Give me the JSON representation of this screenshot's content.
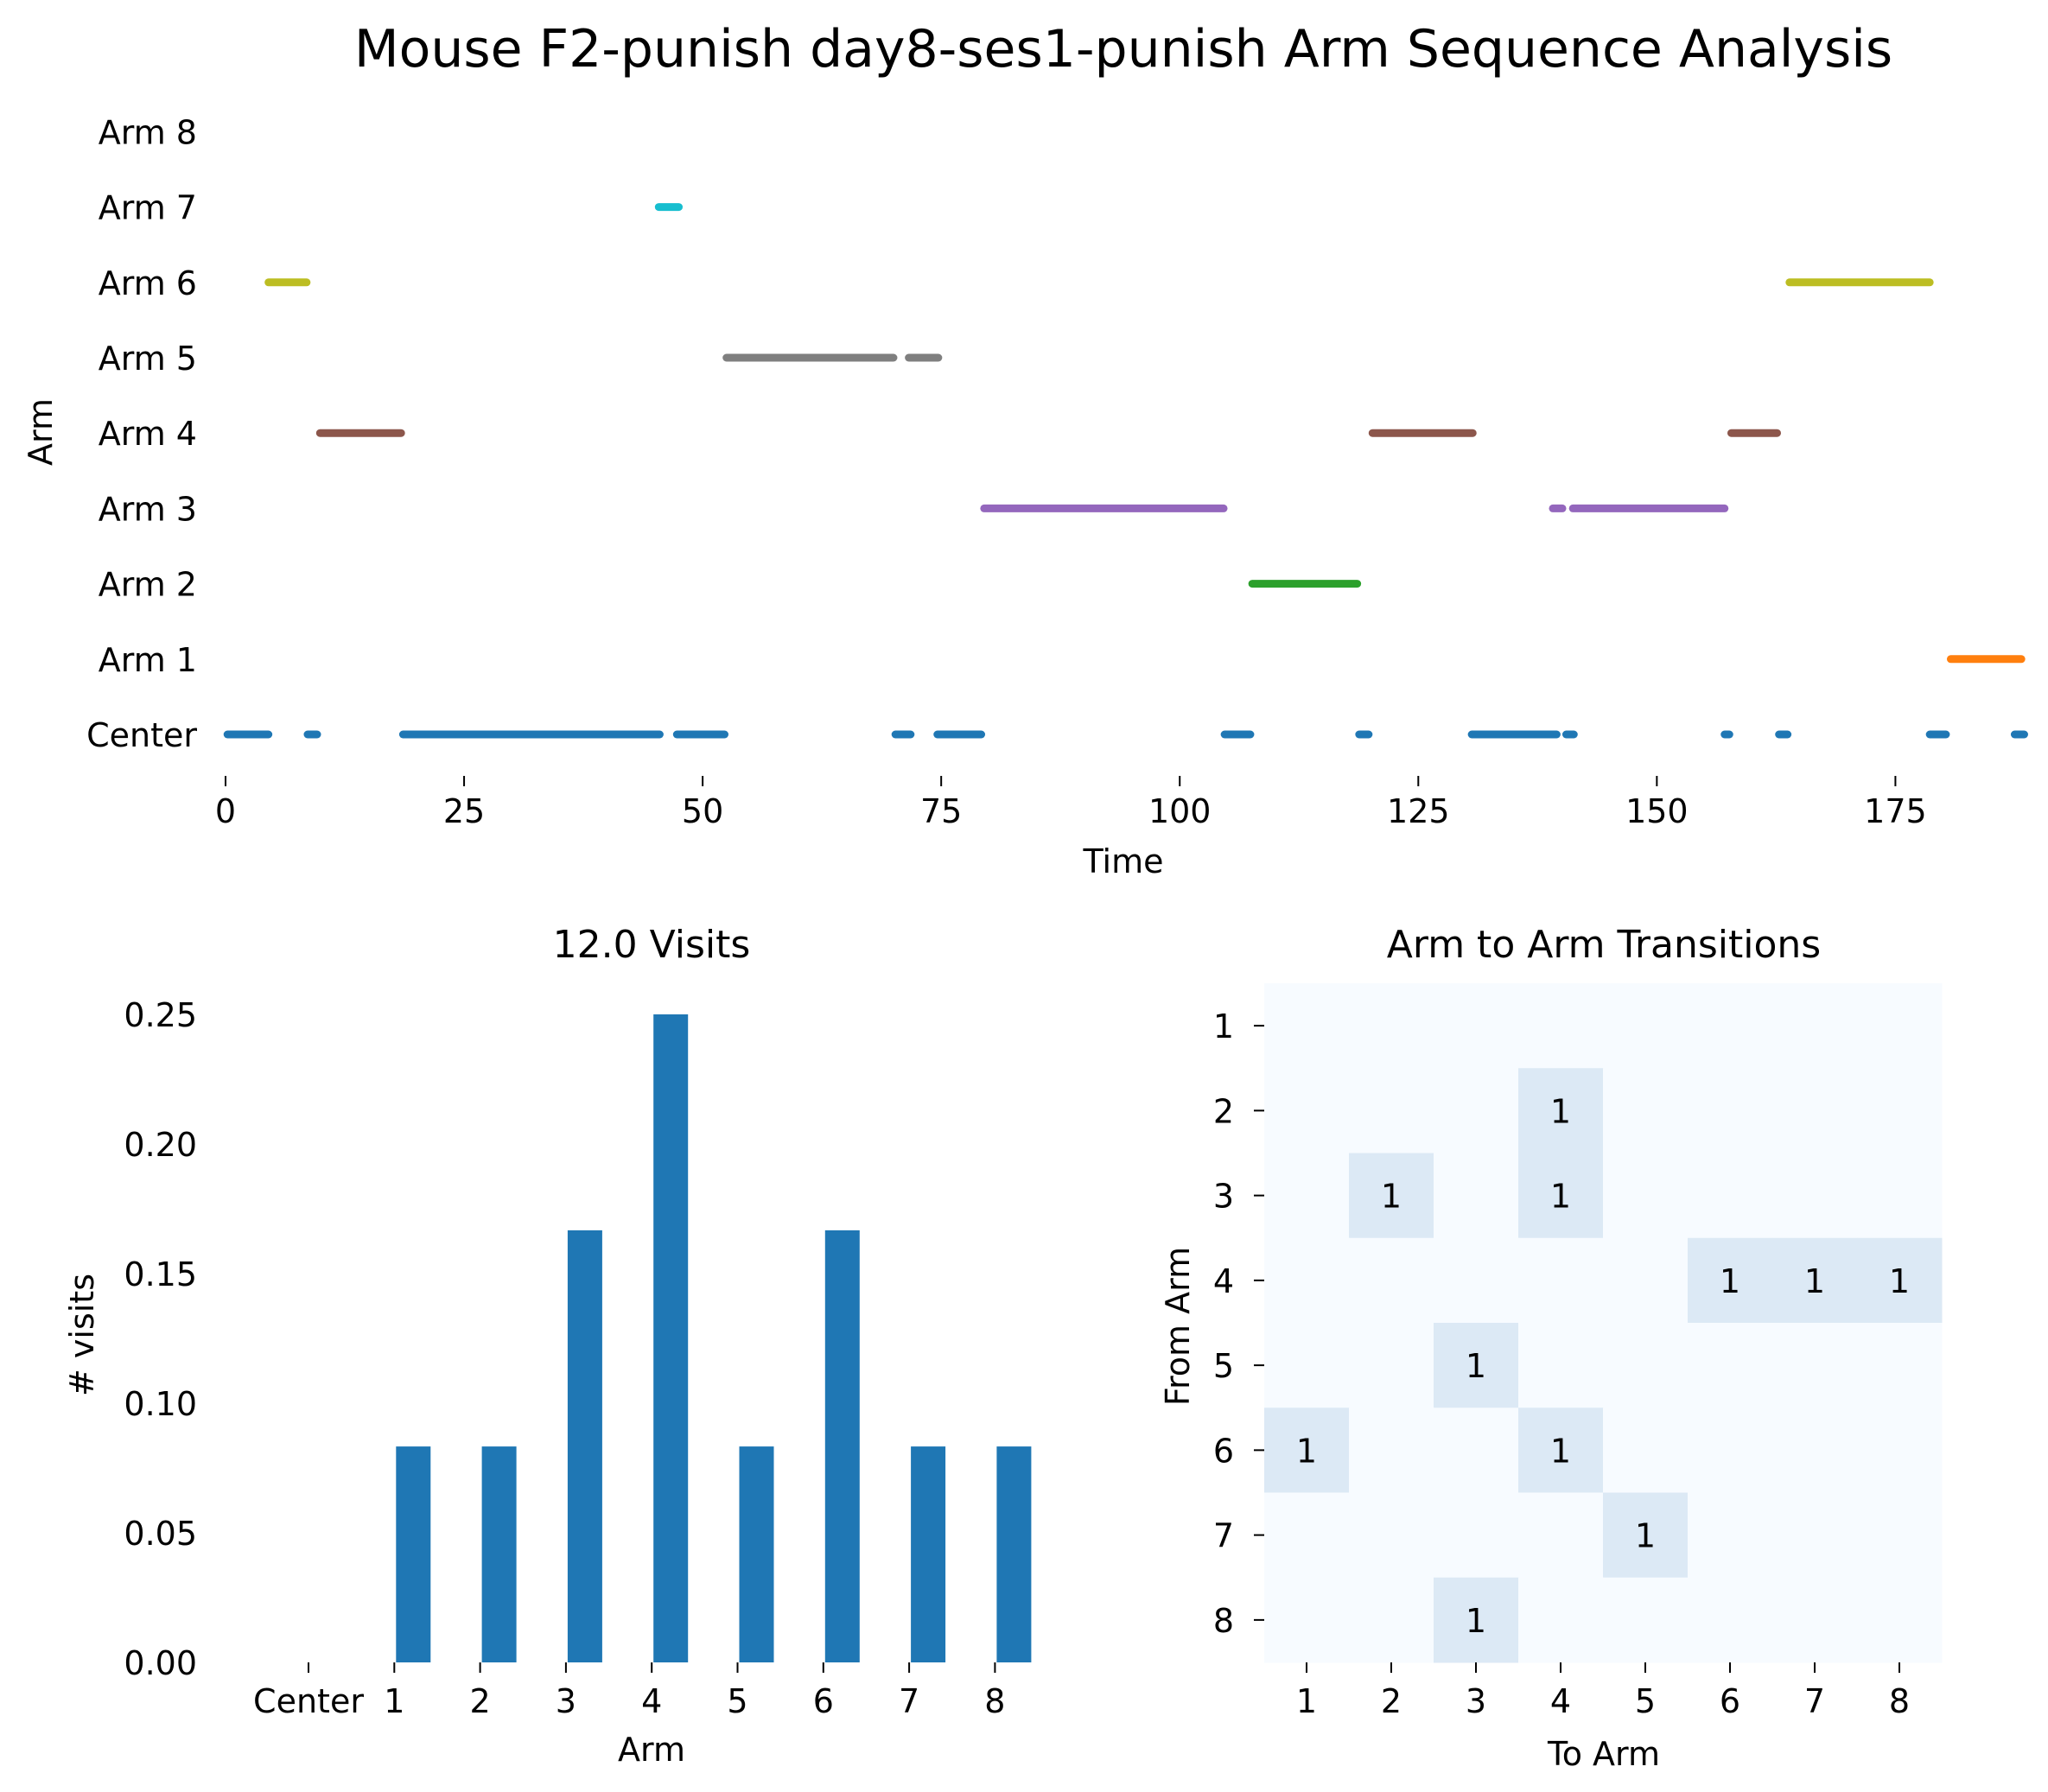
{
  "figure": {
    "title": "Mouse F2-punish day8-ses1-punish Arm Sequence Analysis"
  },
  "chart_data": [
    {
      "type": "line",
      "name": "arm-sequence",
      "title": "",
      "xlabel": "Time",
      "ylabel": "Arm",
      "x_ticks": [
        0,
        25,
        50,
        75,
        100,
        125,
        150,
        175
      ],
      "xlim": [
        0,
        189
      ],
      "y_categories": [
        "Center",
        "Arm 1",
        "Arm 2",
        "Arm 3",
        "Arm 4",
        "Arm 5",
        "Arm 6",
        "Arm 7",
        "Arm 8"
      ],
      "grid": false,
      "segments": [
        {
          "arm": "Center",
          "color": "#1f77b4",
          "x": [
            0.2,
            4.5
          ]
        },
        {
          "arm": "Center",
          "color": "#1f77b4",
          "x": [
            8.6,
            9.6
          ]
        },
        {
          "arm": "Center",
          "color": "#1f77b4",
          "x": [
            18.6,
            45.5
          ]
        },
        {
          "arm": "Center",
          "color": "#1f77b4",
          "x": [
            47.3,
            52.3
          ]
        },
        {
          "arm": "Center",
          "color": "#1f77b4",
          "x": [
            70.2,
            71.8
          ]
        },
        {
          "arm": "Center",
          "color": "#1f77b4",
          "x": [
            74.6,
            79.2
          ]
        },
        {
          "arm": "Center",
          "color": "#1f77b4",
          "x": [
            104.7,
            107.4
          ]
        },
        {
          "arm": "Center",
          "color": "#1f77b4",
          "x": [
            118.8,
            119.8
          ]
        },
        {
          "arm": "Center",
          "color": "#1f77b4",
          "x": [
            130.6,
            139.5
          ]
        },
        {
          "arm": "Center",
          "color": "#1f77b4",
          "x": [
            140.5,
            141.3
          ]
        },
        {
          "arm": "Center",
          "color": "#1f77b4",
          "x": [
            157.1,
            157.6
          ]
        },
        {
          "arm": "Center",
          "color": "#1f77b4",
          "x": [
            162.8,
            163.7
          ]
        },
        {
          "arm": "Center",
          "color": "#1f77b4",
          "x": [
            178.6,
            180.3
          ]
        },
        {
          "arm": "Center",
          "color": "#1f77b4",
          "x": [
            187.5,
            188.5
          ]
        },
        {
          "arm": "Arm 1",
          "color": "#ff7f0e",
          "x": [
            180.8,
            188.2
          ]
        },
        {
          "arm": "Arm 2",
          "color": "#2ca02c",
          "x": [
            107.6,
            118.6
          ]
        },
        {
          "arm": "Arm 3",
          "color": "#9467bd",
          "x": [
            79.5,
            104.6
          ]
        },
        {
          "arm": "Arm 3",
          "color": "#9467bd",
          "x": [
            139.1,
            140.1
          ]
        },
        {
          "arm": "Arm 3",
          "color": "#9467bd",
          "x": [
            141.2,
            157.1
          ]
        },
        {
          "arm": "Arm 4",
          "color": "#8c564b",
          "x": [
            9.9,
            18.4
          ]
        },
        {
          "arm": "Arm 4",
          "color": "#8c564b",
          "x": [
            120.2,
            130.7
          ]
        },
        {
          "arm": "Arm 4",
          "color": "#8c564b",
          "x": [
            157.8,
            162.6
          ]
        },
        {
          "arm": "Arm 5",
          "color": "#7f7f7f",
          "x": [
            52.5,
            70.0
          ]
        },
        {
          "arm": "Arm 5",
          "color": "#7f7f7f",
          "x": [
            71.6,
            74.7
          ]
        },
        {
          "arm": "Arm 6",
          "color": "#bcbd22",
          "x": [
            4.5,
            8.5
          ]
        },
        {
          "arm": "Arm 6",
          "color": "#bcbd22",
          "x": [
            163.9,
            178.6
          ]
        },
        {
          "arm": "Arm 7",
          "color": "#17becf",
          "x": [
            45.4,
            47.5
          ]
        }
      ]
    },
    {
      "type": "bar",
      "name": "visits",
      "title": "12.0 Visits",
      "xlabel": "Arm",
      "ylabel": "# visits",
      "categories": [
        "Center",
        "1",
        "2",
        "3",
        "4",
        "5",
        "6",
        "7",
        "8"
      ],
      "values": [
        0,
        0.0833,
        0.0833,
        0.1667,
        0.25,
        0.0833,
        0.1667,
        0.0833,
        0.0833
      ],
      "ylim": [
        0,
        0.25
      ],
      "y_ticks": [
        "0.00",
        "0.05",
        "0.10",
        "0.15",
        "0.20",
        "0.25"
      ],
      "color": "#1f77b4",
      "grid": false
    },
    {
      "type": "heatmap",
      "name": "transitions",
      "title": "Arm to Arm Transitions",
      "xlabel": "To Arm",
      "ylabel": "From Arm",
      "x_categories": [
        "1",
        "2",
        "3",
        "4",
        "5",
        "6",
        "7",
        "8"
      ],
      "y_categories": [
        "1",
        "2",
        "3",
        "4",
        "5",
        "6",
        "7",
        "8"
      ],
      "colors": {
        "zero": "#f7fbff",
        "one": "#dce9f5"
      },
      "matrix": [
        [
          0,
          0,
          0,
          0,
          0,
          0,
          0,
          0
        ],
        [
          0,
          0,
          0,
          1,
          0,
          0,
          0,
          0
        ],
        [
          0,
          1,
          0,
          1,
          0,
          0,
          0,
          0
        ],
        [
          0,
          0,
          0,
          0,
          0,
          1,
          1,
          1
        ],
        [
          0,
          0,
          1,
          0,
          0,
          0,
          0,
          0
        ],
        [
          1,
          0,
          0,
          1,
          0,
          0,
          0,
          0
        ],
        [
          0,
          0,
          0,
          0,
          1,
          0,
          0,
          0
        ],
        [
          0,
          0,
          1,
          0,
          0,
          0,
          0,
          0
        ]
      ]
    }
  ]
}
